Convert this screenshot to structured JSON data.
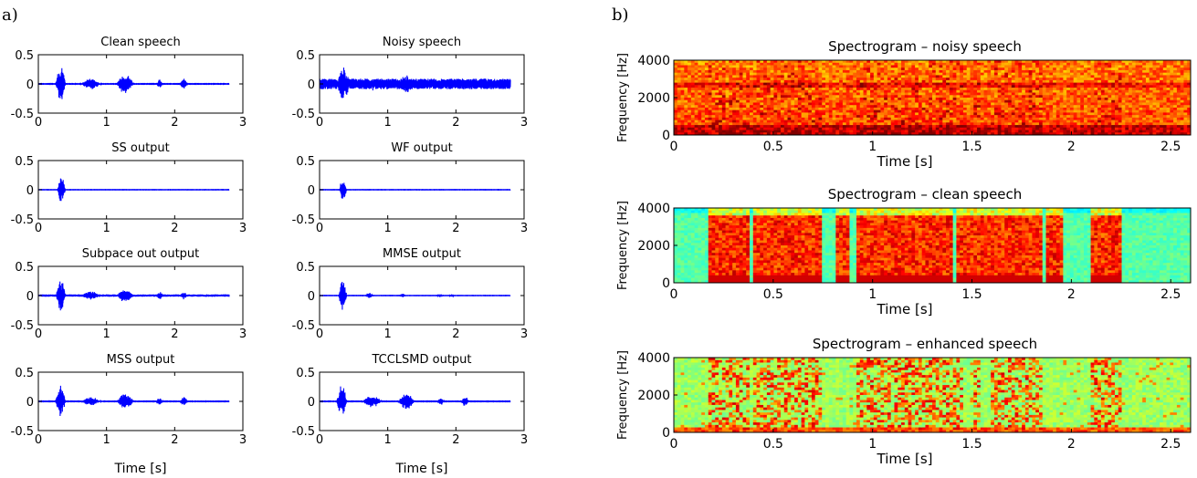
{
  "panels": {
    "a": "a)",
    "b": "b)"
  },
  "colors": {
    "waveform": "#0000ff",
    "axis": "#000000"
  },
  "chart_data": [
    {
      "type": "line",
      "panel": "a",
      "xlim": [
        0,
        3
      ],
      "ylim": [
        -0.5,
        0.5
      ],
      "xticks": [
        "0",
        "1",
        "2",
        "3"
      ],
      "yticks": [
        "0.5",
        "0",
        "-0.5"
      ],
      "xlabel": "Time [s]",
      "signal_end_s": 2.8,
      "grid": false,
      "subplots": [
        {
          "title": "Clean speech",
          "bursts": [
            [
              0.25,
              0.4,
              0.32
            ],
            [
              0.62,
              0.92,
              0.1
            ],
            [
              1.15,
              1.4,
              0.18
            ],
            [
              1.73,
              1.83,
              0.08
            ],
            [
              2.08,
              2.19,
              0.1
            ]
          ],
          "noise": 0.003
        },
        {
          "title": "Noisy speech",
          "bursts": [
            [
              0.25,
              0.45,
              0.33
            ],
            [
              0.62,
              0.92,
              0.12
            ],
            [
              1.15,
              1.4,
              0.16
            ],
            [
              1.73,
              1.83,
              0.08
            ],
            [
              2.08,
              2.19,
              0.08
            ]
          ],
          "noise": 0.09
        },
        {
          "title": "SS output",
          "bursts": [
            [
              0.28,
              0.4,
              0.24
            ]
          ],
          "noise": 0.002
        },
        {
          "title": "WF output",
          "bursts": [
            [
              0.29,
              0.4,
              0.22
            ]
          ],
          "noise": 0.002
        },
        {
          "title": "Subpace out output",
          "bursts": [
            [
              0.26,
              0.4,
              0.3
            ],
            [
              0.62,
              0.92,
              0.08
            ],
            [
              1.15,
              1.4,
              0.12
            ],
            [
              1.73,
              1.83,
              0.07
            ],
            [
              2.08,
              2.19,
              0.07
            ]
          ],
          "noise": 0.02
        },
        {
          "title": "MMSE output",
          "bursts": [
            [
              0.28,
              0.4,
              0.28
            ],
            [
              0.68,
              0.78,
              0.06
            ],
            [
              1.18,
              1.25,
              0.05
            ],
            [
              1.73,
              1.8,
              0.03
            ],
            [
              1.9,
              1.97,
              0.03
            ]
          ],
          "noise": 0.002
        },
        {
          "title": "MSS output",
          "bursts": [
            [
              0.25,
              0.4,
              0.28
            ],
            [
              0.62,
              0.92,
              0.08
            ],
            [
              1.15,
              1.4,
              0.14
            ],
            [
              1.73,
              1.83,
              0.07
            ],
            [
              2.08,
              2.19,
              0.08
            ]
          ],
          "noise": 0.003
        },
        {
          "title": "TCCLSMD output",
          "bursts": [
            [
              0.25,
              0.4,
              0.3
            ],
            [
              0.62,
              0.92,
              0.11
            ],
            [
              1.15,
              1.4,
              0.15
            ],
            [
              1.73,
              1.83,
              0.08
            ],
            [
              2.08,
              2.19,
              0.09
            ]
          ],
          "noise": 0.003
        }
      ]
    },
    {
      "type": "heatmap",
      "panel": "b",
      "xlim": [
        0,
        2.6
      ],
      "ylim": [
        0,
        4000
      ],
      "xticks": [
        "0",
        "0.5",
        "1",
        "1.5",
        "2",
        "2.5"
      ],
      "yticks": [
        "4000",
        "2000",
        "0"
      ],
      "xlabel": "Time [s]",
      "ylabel": "Frequency [Hz]",
      "colormap": "jet",
      "subplots": [
        {
          "title": "Spectrogram – noisy speech",
          "kind": "noisy",
          "background_level": 0.72
        },
        {
          "title": "Spectrogram – clean speech",
          "kind": "clean",
          "background_level": 0.42,
          "speech_segments_s": [
            [
              0.18,
              0.38
            ],
            [
              0.4,
              0.75
            ],
            [
              0.82,
              0.88
            ],
            [
              0.92,
              1.4
            ],
            [
              1.42,
              1.85
            ],
            [
              1.88,
              1.95
            ],
            [
              2.1,
              2.25
            ]
          ]
        },
        {
          "title": "Spectrogram – enhanced speech",
          "kind": "enhanced",
          "background_level": 0.48
        }
      ]
    }
  ]
}
